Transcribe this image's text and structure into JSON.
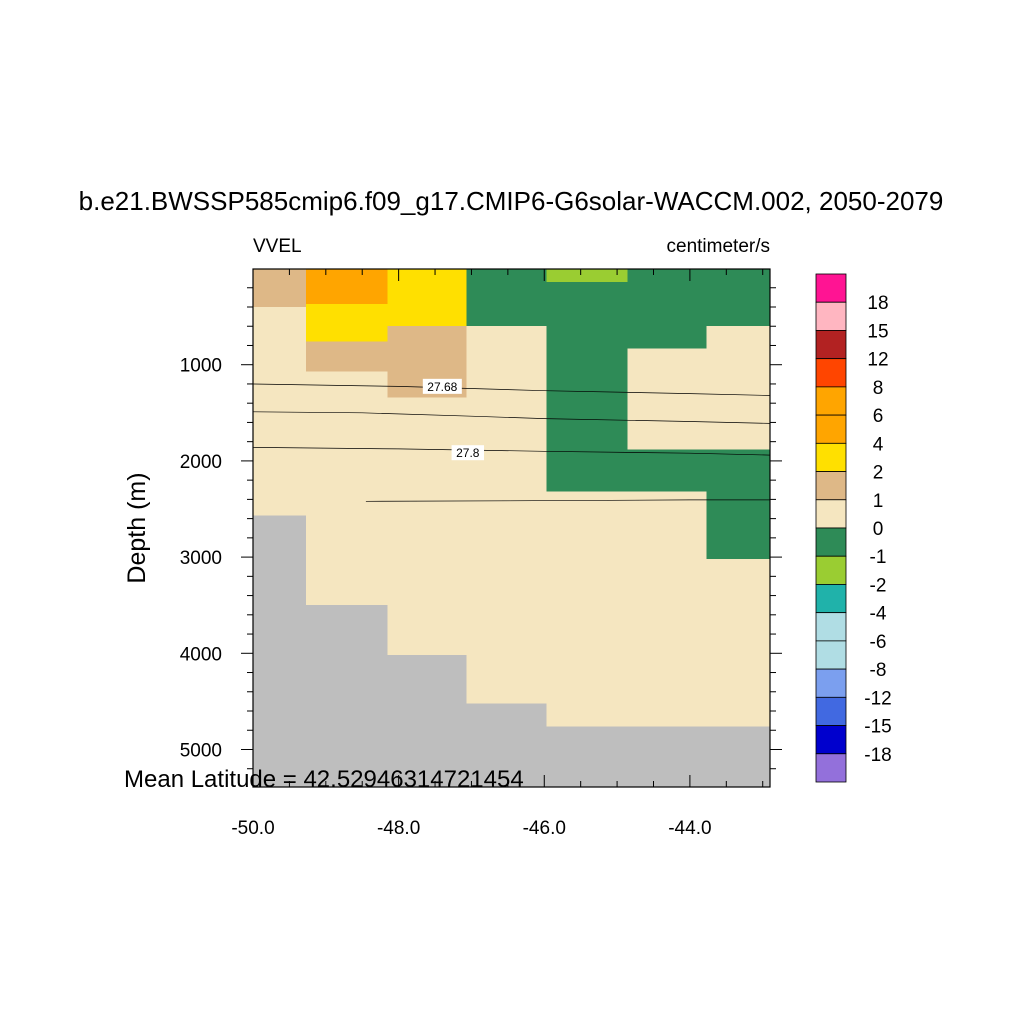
{
  "chart_data": {
    "type": "heatmap",
    "title": "b.e21.BWSSP585cmip6.f09_g17.CMIP6-G6solar-WACCM.002, 2050-2079",
    "left_label": "VVEL",
    "right_label": "centimeter/s",
    "ylabel": "Depth (m)",
    "xlabel": "",
    "footer": "Mean Latitude = 42.52946314721454",
    "xlim": [
      -50.0,
      -42.9
    ],
    "ylim": [
      5,
      5390
    ],
    "x_ticks": [
      -50.0,
      -48.0,
      -46.0,
      -44.0
    ],
    "x_tick_labels": [
      "-50.0",
      "-48.0",
      "-46.0",
      "-44.0"
    ],
    "y_ticks": [
      1000,
      2000,
      3000,
      4000,
      5000
    ],
    "y_tick_labels": [
      "1000",
      "2000",
      "3000",
      "4000",
      "5000"
    ],
    "colorbar": {
      "labels": [
        "18",
        "15",
        "12",
        "8",
        "6",
        "4",
        "2",
        "1",
        "0",
        "-1",
        "-2",
        "-4",
        "-6",
        "-8",
        "-12",
        "-15",
        "-18"
      ],
      "colors": [
        "#FF1493",
        "#FFB6C1",
        "#B22222",
        "#FF4500",
        "#FFA500",
        "#FFA500",
        "#FFE000",
        "#DEB887",
        "#F5E6C0",
        "#2E8B57",
        "#9ACD32",
        "#20B2AA",
        "#B0DDE4",
        "#B0DDE4",
        "#7B9FEF",
        "#4169E1",
        "#0000CD",
        "#9370DB"
      ]
    },
    "palette": {
      "land": "#BEBEBE",
      "c_0_1": "#F5E6C0",
      "c_1_2": "#DEB887",
      "c_2_4": "#FFE000",
      "c_4_6": "#FFA500",
      "c_neg1_0": "#2E8B57",
      "c_neg2_neg1": "#9ACD32"
    },
    "cells": [
      {
        "x0": -50.0,
        "x1": -42.9,
        "y0": 5,
        "y1": 5390,
        "c": "land"
      },
      {
        "x0": -50.0,
        "x1": -49.27,
        "y0": 5,
        "y1": 2570,
        "c": "c_0_1"
      },
      {
        "x0": -49.27,
        "x1": -48.15,
        "y0": 5,
        "y1": 3500,
        "c": "c_0_1"
      },
      {
        "x0": -48.15,
        "x1": -47.07,
        "y0": 5,
        "y1": 4020,
        "c": "c_0_1"
      },
      {
        "x0": -47.07,
        "x1": -45.97,
        "y0": 5,
        "y1": 4520,
        "c": "c_0_1"
      },
      {
        "x0": -45.97,
        "x1": -42.9,
        "y0": 5,
        "y1": 4760,
        "c": "c_0_1"
      },
      {
        "x0": -50.0,
        "x1": -49.27,
        "y0": 5,
        "y1": 400,
        "c": "c_1_2"
      },
      {
        "x0": -49.27,
        "x1": -48.15,
        "y0": 5,
        "y1": 370,
        "c": "c_4_6"
      },
      {
        "x0": -49.27,
        "x1": -48.15,
        "y0": 370,
        "y1": 760,
        "c": "c_2_4"
      },
      {
        "x0": -49.27,
        "x1": -48.15,
        "y0": 760,
        "y1": 1070,
        "c": "c_1_2"
      },
      {
        "x0": -48.15,
        "x1": -47.07,
        "y0": 5,
        "y1": 600,
        "c": "c_2_4"
      },
      {
        "x0": -48.15,
        "x1": -47.07,
        "y0": 600,
        "y1": 1340,
        "c": "c_1_2"
      },
      {
        "x0": -47.07,
        "x1": -45.97,
        "y0": 5,
        "y1": 600,
        "c": "c_neg1_0"
      },
      {
        "x0": -45.97,
        "x1": -44.86,
        "y0": 5,
        "y1": 2320,
        "c": "c_neg1_0"
      },
      {
        "x0": -45.97,
        "x1": -44.86,
        "y0": 5,
        "y1": 140,
        "c": "c_neg2_neg1"
      },
      {
        "x0": -44.86,
        "x1": -43.77,
        "y0": 5,
        "y1": 830,
        "c": "c_neg1_0"
      },
      {
        "x0": -44.86,
        "x1": -42.9,
        "y0": 1880,
        "y1": 2320,
        "c": "c_neg1_0"
      },
      {
        "x0": -43.77,
        "x1": -42.9,
        "y0": 5,
        "y1": 600,
        "c": "c_neg1_0"
      },
      {
        "x0": -43.77,
        "x1": -42.9,
        "y0": 2320,
        "y1": 3020,
        "c": "c_neg1_0"
      }
    ],
    "contours": [
      {
        "label": "27.68",
        "label_at": [
          -47.4,
          1230
        ],
        "points": [
          [
            -50.0,
            1200
          ],
          [
            -48.0,
            1225
          ],
          [
            -46.0,
            1270
          ],
          [
            -44.0,
            1300
          ],
          [
            -42.9,
            1320
          ]
        ]
      },
      {
        "label": "",
        "points": [
          [
            -50.0,
            1490
          ],
          [
            -48.5,
            1500
          ],
          [
            -47.0,
            1535
          ],
          [
            -46.0,
            1560
          ],
          [
            -44.0,
            1590
          ],
          [
            -42.9,
            1610
          ]
        ]
      },
      {
        "label": "27.8",
        "label_at": [
          -47.05,
          1920
        ],
        "points": [
          [
            -50.0,
            1860
          ],
          [
            -48.0,
            1875
          ],
          [
            -46.0,
            1900
          ],
          [
            -44.0,
            1920
          ],
          [
            -42.9,
            1940
          ]
        ]
      },
      {
        "label": "",
        "points": [
          [
            -48.45,
            2420
          ],
          [
            -46.5,
            2415
          ],
          [
            -44.0,
            2405
          ],
          [
            -42.9,
            2405
          ]
        ]
      }
    ]
  }
}
